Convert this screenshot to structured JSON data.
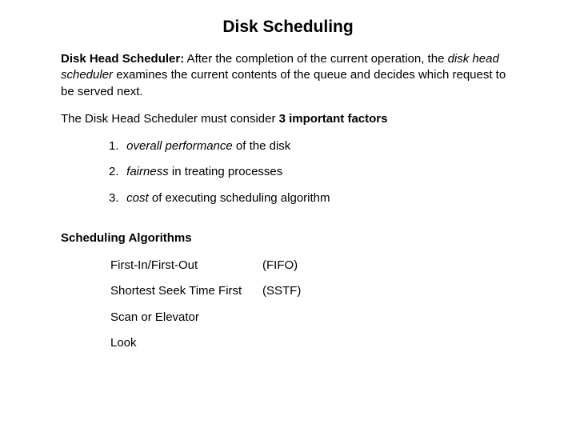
{
  "title": "Disk Scheduling",
  "intro": {
    "term": "Disk Head Scheduler:",
    "before_em": "  After the completion of the current operation, the ",
    "em": "disk head scheduler",
    "after_em": " examines the current contents of the queue and decides which request to be served next."
  },
  "factors_line": {
    "before": "The Disk Head Scheduler must consider ",
    "bold": "3 important factors"
  },
  "factors": [
    {
      "num": "1.",
      "em": "overall performance",
      "rest": " of the disk"
    },
    {
      "num": "2.",
      "em": "fairness",
      "rest": " in treating processes"
    },
    {
      "num": "3.",
      "em": "cost",
      "rest": " of executing scheduling algorithm"
    }
  ],
  "algos_heading": "Scheduling Algorithms",
  "algos": [
    {
      "name": "First-In/First-Out",
      "abbr": "(FIFO)"
    },
    {
      "name": "Shortest Seek Time First",
      "abbr": "(SSTF)"
    },
    {
      "name": "Scan or Elevator",
      "abbr": ""
    },
    {
      "name": "Look",
      "abbr": ""
    }
  ],
  "colors": {
    "background": "#ffffff",
    "text": "#000000"
  },
  "typography": {
    "title_fontsize_pt": 16,
    "body_fontsize_pt": 11,
    "font_family": "Arial"
  }
}
